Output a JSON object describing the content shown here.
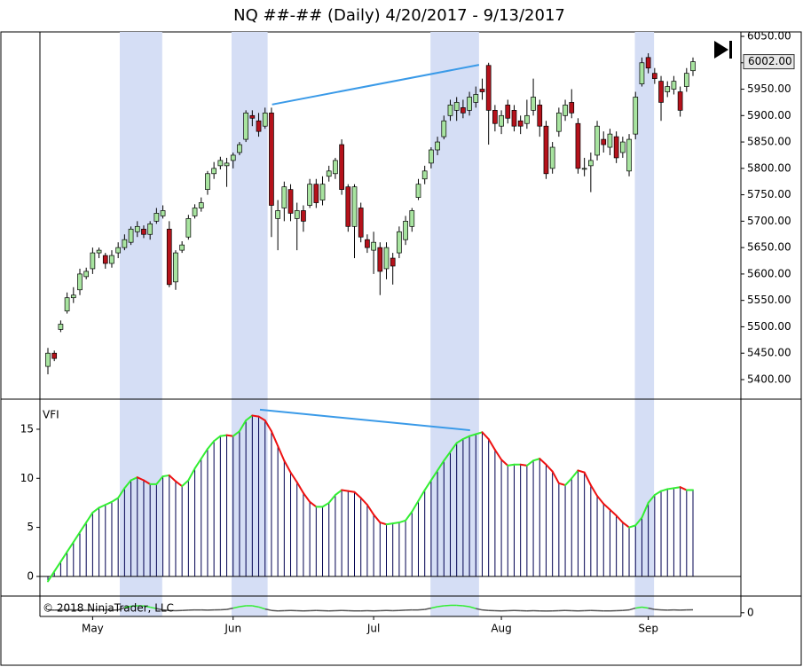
{
  "chart_data": [
    {
      "type": "candlestick",
      "title": "NQ ##-## (Daily)  4/20/2017 - 9/13/2017",
      "xlim": [
        -1.25,
        108.5
      ],
      "xticks": [
        {
          "value": 7,
          "label": "May"
        },
        {
          "value": 29,
          "label": "Jun"
        },
        {
          "value": 51,
          "label": "Jul"
        },
        {
          "value": 71,
          "label": "Aug"
        },
        {
          "value": 94,
          "label": "Sep"
        }
      ],
      "ylim": [
        5363,
        6058.4
      ],
      "yticks": [
        {
          "value": 5400,
          "label": "5400.00"
        },
        {
          "value": 5450,
          "label": "5450.00"
        },
        {
          "value": 5500,
          "label": "5500.00"
        },
        {
          "value": 5550,
          "label": "5550.00"
        },
        {
          "value": 5600,
          "label": "5600.00"
        },
        {
          "value": 5650,
          "label": "5650.00"
        },
        {
          "value": 5700,
          "label": "5700.00"
        },
        {
          "value": 5750,
          "label": "5750.00"
        },
        {
          "value": 5800,
          "label": "5800.00"
        },
        {
          "value": 5850,
          "label": "5850.00"
        },
        {
          "value": 5900,
          "label": "5900.00"
        },
        {
          "value": 5950,
          "label": "5950.00"
        },
        {
          "value": 6000,
          "label": "6000.00"
        },
        {
          "value": 6050,
          "label": "6050.00"
        }
      ],
      "up_color": "#a8e4a0",
      "down_color": "#b5121b",
      "highlight_color": "#d5def5",
      "highlights": [
        [
          11.25,
          17.9
        ],
        [
          28.75,
          34.4
        ],
        [
          59.9,
          67.5
        ],
        [
          91.9,
          94.9
        ]
      ],
      "trendlines": [
        {
          "x": [
            35.1,
            67.5
          ],
          "y": [
            5921,
            5996
          ],
          "color": "#3a9ae8"
        }
      ],
      "last_price": {
        "value": 6002,
        "label": "6002.00"
      },
      "open": [
        5425,
        5450,
        5495,
        5530,
        5555,
        5570,
        5595,
        5610,
        5640,
        5635,
        5620,
        5640,
        5650,
        5660,
        5680,
        5685,
        5675,
        5700,
        5710,
        5685,
        5585,
        5645,
        5670,
        5710,
        5725,
        5760,
        5790,
        5805,
        5805,
        5815,
        5830,
        5855,
        5900,
        5890,
        5880,
        5905,
        5705,
        5725,
        5760,
        5705,
        5720,
        5730,
        5770,
        5740,
        5785,
        5790,
        5845,
        5765,
        5690,
        5725,
        5665,
        5645,
        5650,
        5610,
        5630,
        5640,
        5665,
        5690,
        5745,
        5780,
        5810,
        5835,
        5860,
        5900,
        5910,
        5915,
        5910,
        5925,
        5950,
        5995,
        5910,
        5880,
        5920,
        5910,
        5890,
        5885,
        5910,
        5920,
        5880,
        5800,
        5870,
        5900,
        5925,
        5885,
        5800,
        5805,
        5825,
        5855,
        5840,
        5860,
        5830,
        5795,
        5865,
        5960,
        6010,
        5980,
        5965,
        5945,
        5950,
        5945,
        5955,
        5985
      ],
      "high": [
        5460,
        5455,
        5512,
        5565,
        5575,
        5610,
        5612,
        5650,
        5650,
        5640,
        5645,
        5660,
        5675,
        5690,
        5700,
        5692,
        5700,
        5725,
        5730,
        5700,
        5645,
        5662,
        5712,
        5732,
        5745,
        5795,
        5812,
        5822,
        5820,
        5830,
        5850,
        5910,
        5910,
        5905,
        5915,
        5915,
        5740,
        5775,
        5770,
        5735,
        5730,
        5780,
        5780,
        5785,
        5805,
        5820,
        5855,
        5770,
        5770,
        5735,
        5675,
        5680,
        5660,
        5660,
        5640,
        5690,
        5710,
        5725,
        5780,
        5805,
        5840,
        5860,
        5900,
        5930,
        5935,
        5930,
        5945,
        5955,
        5970,
        6000,
        5920,
        5910,
        5930,
        5920,
        5900,
        5930,
        5970,
        5930,
        5890,
        5850,
        5915,
        5930,
        5950,
        5895,
        5820,
        5830,
        5890,
        5870,
        5875,
        5870,
        5860,
        5865,
        5945,
        6010,
        6018,
        5990,
        5975,
        5965,
        5975,
        5955,
        5990,
        6010
      ],
      "low": [
        5410,
        5435,
        5490,
        5525,
        5545,
        5560,
        5590,
        5600,
        5630,
        5610,
        5612,
        5630,
        5645,
        5655,
        5670,
        5668,
        5665,
        5695,
        5705,
        5575,
        5570,
        5640,
        5665,
        5705,
        5718,
        5750,
        5780,
        5798,
        5765,
        5800,
        5825,
        5850,
        5880,
        5860,
        5875,
        5670,
        5645,
        5700,
        5700,
        5645,
        5680,
        5725,
        5725,
        5730,
        5775,
        5780,
        5750,
        5680,
        5630,
        5660,
        5640,
        5600,
        5560,
        5590,
        5580,
        5630,
        5655,
        5680,
        5740,
        5770,
        5800,
        5825,
        5855,
        5890,
        5890,
        5895,
        5900,
        5915,
        5930,
        5845,
        5870,
        5865,
        5885,
        5870,
        5865,
        5875,
        5900,
        5860,
        5780,
        5790,
        5860,
        5890,
        5895,
        5790,
        5785,
        5755,
        5815,
        5830,
        5825,
        5810,
        5820,
        5785,
        5855,
        5955,
        5980,
        5960,
        5890,
        5935,
        5940,
        5898,
        5945,
        5975
      ],
      "close": [
        5450,
        5440,
        5505,
        5555,
        5560,
        5600,
        5605,
        5640,
        5645,
        5620,
        5635,
        5650,
        5665,
        5685,
        5690,
        5675,
        5695,
        5715,
        5720,
        5580,
        5640,
        5655,
        5705,
        5725,
        5735,
        5790,
        5800,
        5815,
        5810,
        5825,
        5845,
        5905,
        5895,
        5870,
        5905,
        5730,
        5720,
        5765,
        5715,
        5720,
        5700,
        5770,
        5735,
        5770,
        5795,
        5815,
        5760,
        5690,
        5765,
        5670,
        5650,
        5660,
        5605,
        5650,
        5615,
        5680,
        5700,
        5720,
        5770,
        5795,
        5835,
        5850,
        5890,
        5920,
        5925,
        5905,
        5935,
        5940,
        5945,
        5910,
        5885,
        5900,
        5895,
        5880,
        5880,
        5900,
        5935,
        5880,
        5790,
        5840,
        5905,
        5920,
        5905,
        5800,
        5800,
        5815,
        5880,
        5845,
        5865,
        5820,
        5850,
        5855,
        5935,
        6000,
        5990,
        5970,
        5925,
        5955,
        5965,
        5910,
        5980,
        6002
      ]
    },
    {
      "type": "line",
      "title": "VFI",
      "ylim": [
        -2,
        18.07
      ],
      "yticks": [
        0,
        5,
        10,
        15
      ],
      "bar_color": "#000050",
      "up_color": "#33ee33",
      "down_color": "#ee1111",
      "trendlines": [
        {
          "x": [
            33.2,
            66.1
          ],
          "y": [
            17.0,
            14.9
          ],
          "color": "#3a9ae8"
        }
      ],
      "values": [
        -0.5,
        0.5,
        1.5,
        2.5,
        3.5,
        4.5,
        5.5,
        6.5,
        7.0,
        7.3,
        7.6,
        8.0,
        9.0,
        9.8,
        10.1,
        9.8,
        9.4,
        9.4,
        10.2,
        10.3,
        9.7,
        9.2,
        9.8,
        11.0,
        12.0,
        13.0,
        13.8,
        14.3,
        14.4,
        14.3,
        14.8,
        15.9,
        16.4,
        16.3,
        15.9,
        14.8,
        13.3,
        11.8,
        10.6,
        9.6,
        8.5,
        7.6,
        7.1,
        7.1,
        7.5,
        8.3,
        8.8,
        8.7,
        8.6,
        8.0,
        7.3,
        6.3,
        5.5,
        5.3,
        5.4,
        5.5,
        5.7,
        6.6,
        7.7,
        8.8,
        9.8,
        10.8,
        11.8,
        12.7,
        13.6,
        14.0,
        14.3,
        14.5,
        14.7,
        14.0,
        12.9,
        11.9,
        11.3,
        11.4,
        11.4,
        11.3,
        11.8,
        12.0,
        11.4,
        10.7,
        9.5,
        9.3,
        10.0,
        10.8,
        10.6,
        9.3,
        8.2,
        7.4,
        6.8,
        6.2,
        5.5,
        5.0,
        5.2,
        6.0,
        7.5,
        8.3,
        8.7,
        8.9,
        9.0,
        9.1,
        8.8,
        8.8
      ]
    },
    {
      "type": "line",
      "annotation": "© 2018 NinjaTrader, LLC",
      "ylim": [
        -0.4,
        1.8
      ],
      "yticks": [
        0
      ],
      "color": "#555555",
      "highlight_line_color": "#33ee33",
      "values": [
        0.3,
        0.28,
        0.3,
        0.32,
        0.3,
        0.28,
        0.27,
        0.3,
        0.32,
        0.3,
        0.28,
        0.3,
        0.55,
        0.7,
        0.75,
        0.72,
        0.6,
        0.45,
        0.3,
        0.25,
        0.22,
        0.25,
        0.28,
        0.3,
        0.3,
        0.28,
        0.3,
        0.32,
        0.35,
        0.5,
        0.65,
        0.75,
        0.75,
        0.62,
        0.4,
        0.25,
        0.2,
        0.22,
        0.25,
        0.22,
        0.2,
        0.22,
        0.25,
        0.22,
        0.2,
        0.22,
        0.25,
        0.22,
        0.2,
        0.2,
        0.22,
        0.2,
        0.22,
        0.25,
        0.22,
        0.25,
        0.28,
        0.3,
        0.3,
        0.35,
        0.5,
        0.65,
        0.75,
        0.8,
        0.8,
        0.75,
        0.65,
        0.45,
        0.3,
        0.25,
        0.22,
        0.2,
        0.22,
        0.25,
        0.22,
        0.2,
        0.22,
        0.2,
        0.18,
        0.2,
        0.22,
        0.25,
        0.22,
        0.2,
        0.22,
        0.25,
        0.22,
        0.2,
        0.2,
        0.22,
        0.25,
        0.3,
        0.5,
        0.6,
        0.5,
        0.35,
        0.3,
        0.28,
        0.3,
        0.28,
        0.3,
        0.32
      ]
    }
  ]
}
